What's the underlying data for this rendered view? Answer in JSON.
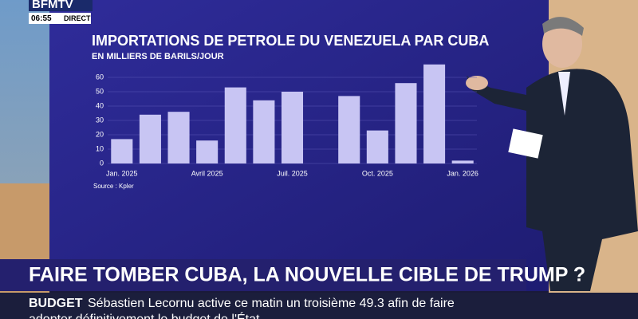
{
  "broadcast": {
    "channel": "BFMTV",
    "time": "06:55",
    "live": "DIRECT",
    "headline": "FAIRE TOMBER CUBA, LA NOUVELLE CIBLE DE TRUMP ?",
    "ticker_label": "BUDGET",
    "ticker_text": [
      "Sébastien Lecornu active ce matin un troisième 49.3 afin de faire",
      "adopter définitivement le budget de l'État"
    ]
  },
  "chart_data": {
    "type": "bar",
    "title": "IMPORTATIONS DE PETROLE DU VENEZUELA PAR CUBA",
    "subtitle": "EN MILLIERS DE BARILS/JOUR",
    "source": "Source : Kpler",
    "categories": [
      "Jan. 2025",
      null,
      null,
      "Avril 2025",
      null,
      null,
      "Juil. 2025",
      null,
      null,
      "Oct. 2025",
      null,
      null,
      "Jan. 2026"
    ],
    "values": [
      17,
      34,
      36,
      16,
      53,
      44,
      50,
      null,
      47,
      23,
      56,
      69,
      2
    ],
    "color": "#c8c5f3",
    "ylim": [
      0,
      70
    ],
    "yticks": [
      0,
      10,
      20,
      30,
      40,
      50,
      60
    ],
    "grid": true
  }
}
